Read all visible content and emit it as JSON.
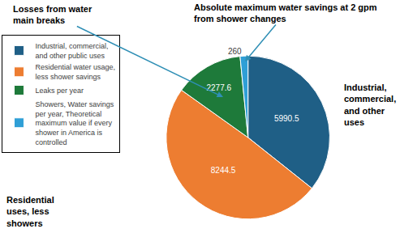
{
  "chart_data": {
    "type": "pie",
    "categories": [
      "Industrial, commercial, and other public uses",
      "Residential water usage, less shower savings",
      "Leaks per year",
      "Showers, Water savings per year, Theoretical maximum value if every shower in America is controlled"
    ],
    "values": [
      5990.5,
      8244.5,
      2277.6,
      260
    ],
    "colors": [
      "#1f5f86",
      "#ed7d31",
      "#1e7a3a",
      "#2f9fd6"
    ],
    "data_labels": true,
    "legend": "left",
    "annotations": [
      "Losses from water main breaks",
      "Absolute maximum water savings at 2 gpm from shower changes",
      "Industrial, commercial, and other uses",
      "Residential uses, less showers"
    ]
  }
}
